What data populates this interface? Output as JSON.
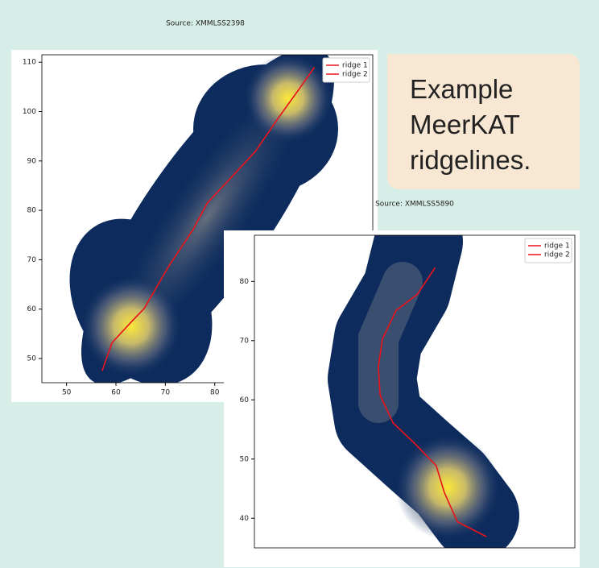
{
  "callout": "Example MeerKAT ridgelines.",
  "chart_data": [
    {
      "type": "line",
      "title": "Source: XMMLSS2398",
      "x": [
        57.2,
        59.2,
        63.0,
        65.7,
        70.7,
        75.6,
        78.5,
        83.0,
        88.2,
        92.8,
        96.9,
        100.2
      ],
      "series": [
        {
          "name": "ridge 1",
          "color": "#e8141c",
          "values": [
            47.5,
            53.2,
            57.3,
            60.1,
            68.7,
            76.1,
            81.5,
            86.3,
            91.9,
            98.6,
            104.3,
            109.0
          ]
        },
        {
          "name": "ridge 2",
          "color": "#e8141c",
          "values": [
            47.5,
            53.2,
            57.3,
            60.1,
            68.7,
            76.1,
            81.5,
            86.3,
            91.9,
            98.6,
            104.3,
            109.0
          ]
        }
      ],
      "xlim": [
        45,
        112
      ],
      "xticks": [
        50,
        60,
        70,
        80
      ],
      "ylim": [
        45.1,
        111.5
      ],
      "yticks": [
        50,
        60,
        70,
        80,
        90,
        100,
        110
      ],
      "legend": "upper right"
    },
    {
      "type": "line",
      "title": "Source: XMMLSS5890",
      "x": [
        30.6,
        27.6,
        24.0,
        21.7,
        21.0,
        21.3,
        23.5,
        27.1,
        30.8,
        32.2,
        34.4,
        39.3
      ],
      "series": [
        {
          "name": "ridge 1",
          "color": "#e8141c",
          "values": [
            82.3,
            77.8,
            75.1,
            70.3,
            65.6,
            60.8,
            56.1,
            52.7,
            48.9,
            44.3,
            39.4,
            36.9
          ]
        },
        {
          "name": "ridge 2",
          "color": "#e8141c",
          "values": [
            82.3,
            77.8,
            75.1,
            70.3,
            65.6,
            60.8,
            56.1,
            52.7,
            48.9,
            44.3,
            39.4,
            36.9
          ]
        }
      ],
      "xlim": [
        0,
        54.3
      ],
      "ylim": [
        35,
        87.8
      ],
      "yticks": [
        40,
        50,
        60,
        70,
        80
      ],
      "legend": "upper right"
    }
  ]
}
